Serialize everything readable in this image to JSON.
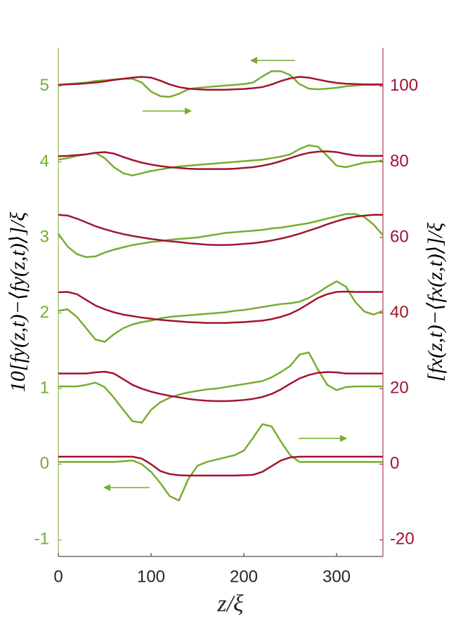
{
  "chart_data": {
    "type": "line",
    "xlabel": "z/ξ",
    "ylabel": "10[fy(z,t)−⟨fy(z,t)⟩]/ξ",
    "y2label": "[fx(z,t)−⟨fx(z,t)⟩]/ξ",
    "xlim": [
      0,
      350
    ],
    "xticks": [
      0,
      100,
      200,
      300
    ],
    "ylim": [
      -1.22,
      5.51
    ],
    "yticks": [
      -1,
      0,
      1,
      2,
      3,
      4,
      5
    ],
    "y2lim": [
      -24.4,
      110.2
    ],
    "y2ticks": [
      -20,
      0,
      20,
      40,
      60,
      80,
      100
    ],
    "ycolor": "#77ac30",
    "y2color": "#a2142f",
    "grid": false,
    "x": [
      0,
      10,
      20,
      30,
      40,
      50,
      60,
      70,
      80,
      90,
      100,
      110,
      120,
      130,
      140,
      150,
      160,
      170,
      180,
      190,
      200,
      210,
      220,
      230,
      240,
      250,
      260,
      270,
      280,
      290,
      300,
      310,
      320,
      330,
      340,
      350
    ],
    "series": [
      {
        "color": "#77ac30",
        "axis": "y",
        "values": [
          0.03,
          0.03,
          0.03,
          0.03,
          0.03,
          0.03,
          0.03,
          0.04,
          0.05,
          0.0,
          -0.1,
          -0.25,
          -0.42,
          -0.48,
          -0.2,
          -0.02,
          0.03,
          0.06,
          0.09,
          0.12,
          0.18,
          0.35,
          0.53,
          0.5,
          0.3,
          0.12,
          0.03,
          0.03,
          0.03,
          0.03,
          0.03,
          0.03,
          0.03,
          0.03,
          0.03,
          0.03
        ]
      },
      {
        "color": "#77ac30",
        "axis": "y",
        "values": [
          1.03,
          1.03,
          1.03,
          1.05,
          1.08,
          1.02,
          0.88,
          0.72,
          0.57,
          0.55,
          0.72,
          0.82,
          0.88,
          0.92,
          0.95,
          0.97,
          0.99,
          1.0,
          1.02,
          1.04,
          1.06,
          1.08,
          1.1,
          1.15,
          1.22,
          1.3,
          1.45,
          1.48,
          1.25,
          1.05,
          0.98,
          1.02,
          1.03,
          1.03,
          1.03,
          1.03
        ]
      },
      {
        "color": "#77ac30",
        "axis": "y",
        "values": [
          2.03,
          2.05,
          1.95,
          1.8,
          1.65,
          1.62,
          1.72,
          1.8,
          1.85,
          1.88,
          1.9,
          1.93,
          1.95,
          1.96,
          1.97,
          1.98,
          1.99,
          2.0,
          2.01,
          2.03,
          2.04,
          2.06,
          2.08,
          2.1,
          2.12,
          2.13,
          2.15,
          2.2,
          2.27,
          2.35,
          2.42,
          2.35,
          2.15,
          2.02,
          1.98,
          2.03
        ]
      },
      {
        "color": "#77ac30",
        "axis": "y",
        "values": [
          3.05,
          2.88,
          2.78,
          2.74,
          2.75,
          2.8,
          2.84,
          2.87,
          2.9,
          2.92,
          2.94,
          2.95,
          2.97,
          2.98,
          2.99,
          3.0,
          3.02,
          3.04,
          3.06,
          3.07,
          3.08,
          3.09,
          3.1,
          3.12,
          3.13,
          3.15,
          3.17,
          3.19,
          3.22,
          3.25,
          3.28,
          3.31,
          3.31,
          3.27,
          3.17,
          3.03
        ]
      },
      {
        "color": "#77ac30",
        "axis": "y",
        "values": [
          4.03,
          4.05,
          4.08,
          4.1,
          4.12,
          4.05,
          3.93,
          3.85,
          3.82,
          3.85,
          3.88,
          3.9,
          3.92,
          3.94,
          3.95,
          3.96,
          3.97,
          3.98,
          3.99,
          4.0,
          4.01,
          4.02,
          4.03,
          4.05,
          4.07,
          4.1,
          4.17,
          4.22,
          4.2,
          4.08,
          3.95,
          3.93,
          3.96,
          3.99,
          4.0,
          4.02
        ]
      },
      {
        "color": "#77ac30",
        "axis": "y",
        "values": [
          5.02,
          5.03,
          5.04,
          5.05,
          5.07,
          5.08,
          5.09,
          5.1,
          5.1,
          5.05,
          4.93,
          4.87,
          4.86,
          4.9,
          4.96,
          4.98,
          4.99,
          5.0,
          5.01,
          5.02,
          5.03,
          5.05,
          5.13,
          5.2,
          5.2,
          5.15,
          5.03,
          4.97,
          4.96,
          4.97,
          4.98,
          5.0,
          5.01,
          5.02,
          5.02,
          5.02
        ]
      },
      {
        "color": "#a2142f",
        "axis": "y2",
        "values": [
          2,
          2,
          2,
          2,
          2,
          2,
          2,
          2,
          2,
          1.5,
          0,
          -1.8,
          -2.6,
          -2.9,
          -3,
          -3,
          -3,
          -3,
          -3,
          -3,
          -2.9,
          -2.8,
          -2,
          -0.5,
          1,
          1.8,
          2,
          2,
          2,
          2,
          2,
          2,
          2,
          2,
          2,
          2
        ]
      },
      {
        "color": "#a2142f",
        "axis": "y2",
        "values": [
          24,
          24,
          24,
          24,
          24.3,
          24.5,
          24,
          22.5,
          21,
          20,
          19.2,
          18.6,
          18.1,
          17.7,
          17.3,
          17,
          16.8,
          16.7,
          16.7,
          16.8,
          17,
          17.3,
          17.8,
          18.6,
          19.8,
          21.3,
          22.7,
          23.6,
          24.2,
          24.4,
          24.3,
          24,
          24,
          24,
          24,
          24
        ]
      },
      {
        "color": "#a2142f",
        "axis": "y2",
        "values": [
          45.5,
          45.6,
          45,
          43.5,
          42,
          41,
          40.2,
          39.6,
          39.2,
          38.8,
          38.5,
          38.2,
          38,
          37.8,
          37.6,
          37.5,
          37.4,
          37.4,
          37.4,
          37.5,
          37.6,
          37.8,
          38,
          38.4,
          39,
          39.8,
          41,
          42.5,
          44,
          45,
          45.6,
          45.7,
          45.6,
          45.6,
          45.6,
          45.6
        ]
      },
      {
        "color": "#a2142f",
        "axis": "y2",
        "values": [
          66,
          65.8,
          65,
          64,
          63,
          62.2,
          61.5,
          60.9,
          60.4,
          60,
          59.6,
          59.3,
          59,
          58.8,
          58.5,
          58.3,
          58.1,
          58,
          58,
          58.1,
          58.3,
          58.5,
          58.8,
          59.2,
          59.7,
          60.3,
          61,
          61.8,
          62.6,
          63.5,
          64.3,
          65,
          65.5,
          65.8,
          66,
          66
        ]
      },
      {
        "color": "#a2142f",
        "axis": "y2",
        "values": [
          81.5,
          81.6,
          81.8,
          82,
          82.4,
          82.6,
          82.2,
          81.3,
          80.5,
          79.8,
          79.3,
          78.9,
          78.6,
          78.4,
          78.2,
          78.1,
          78.1,
          78.1,
          78.1,
          78.2,
          78.4,
          78.6,
          79,
          79.5,
          80.2,
          81,
          81.8,
          82.4,
          82.7,
          82.8,
          82.6,
          82.1,
          81.7,
          81.6,
          81.6,
          81.6
        ]
      },
      {
        "color": "#a2142f",
        "axis": "y2",
        "values": [
          100.4,
          100.5,
          100.6,
          100.8,
          101,
          101.3,
          101.7,
          102,
          102.3,
          102.5,
          102.3,
          101.5,
          100.5,
          99.8,
          99.4,
          99.2,
          99.1,
          99.1,
          99.1,
          99.2,
          99.3,
          99.5,
          99.8,
          100.5,
          101.4,
          102.1,
          102.5,
          102.3,
          101.8,
          101.3,
          100.9,
          100.7,
          100.6,
          100.5,
          100.5,
          100.5
        ]
      }
    ]
  }
}
